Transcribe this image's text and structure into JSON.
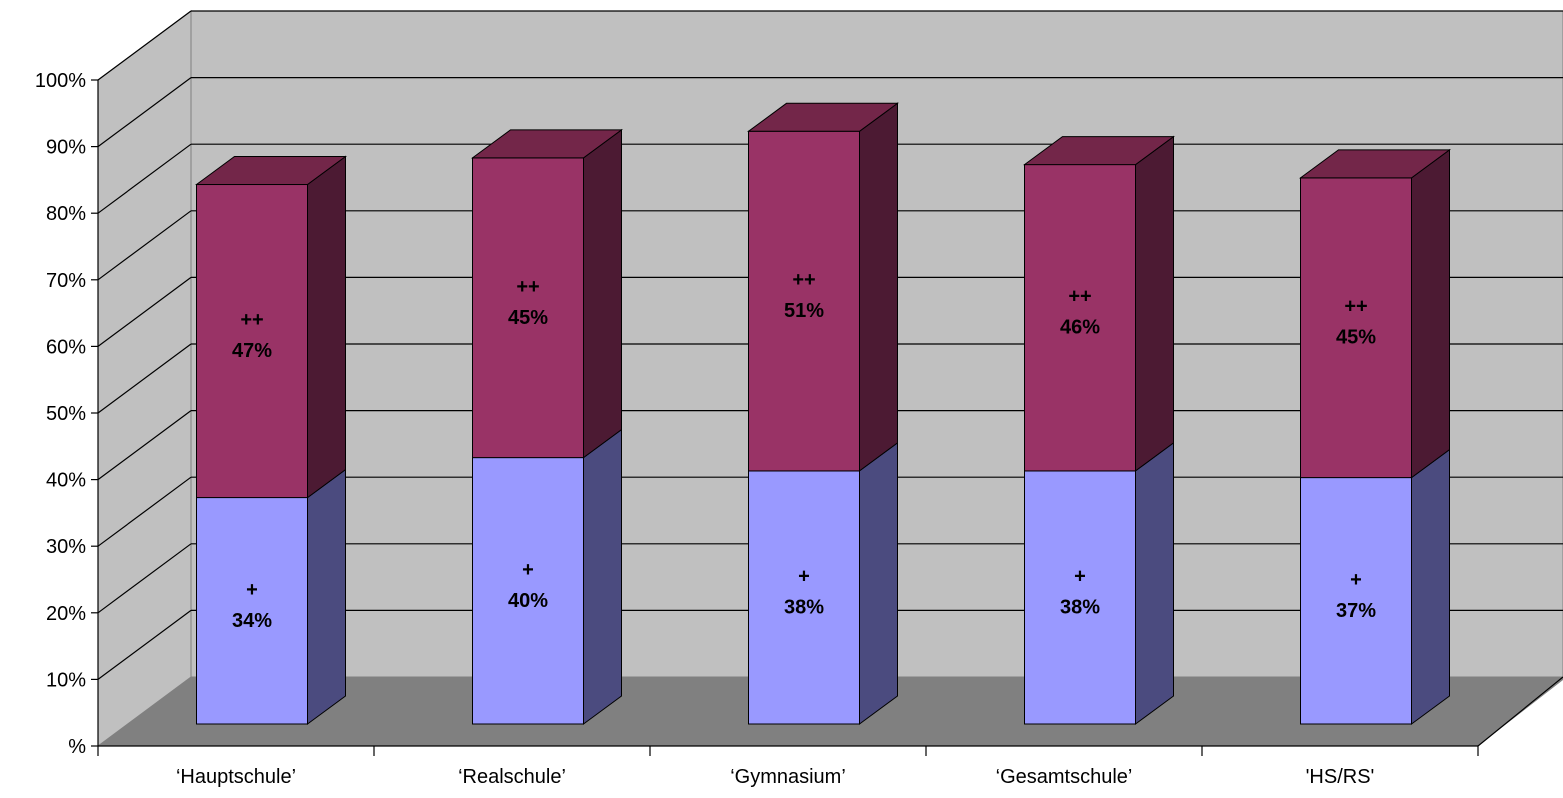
{
  "chart_data": {
    "type": "bar",
    "stacked": true,
    "three_d": true,
    "percent": true,
    "title": "",
    "xlabel": "",
    "ylabel": "",
    "ylim": [
      0,
      100
    ],
    "y_tick_labels": [
      "%",
      "10%",
      "20%",
      "30%",
      "40%",
      "50%",
      "60%",
      "70%",
      "80%",
      "90%",
      "100%"
    ],
    "grid": true,
    "legend": "none",
    "categories": [
      "‘Hauptschule’",
      "‘Realschule’",
      "‘Gymnasium’",
      "‘Gesamtschule’",
      "'HS/RS'"
    ],
    "series": [
      {
        "marker": "+",
        "values": [
          34,
          40,
          38,
          38,
          37
        ],
        "labels": [
          "34%",
          "40%",
          "38%",
          "38%",
          "37%"
        ],
        "color": "#9999ff",
        "side_color": "#4b4b7f",
        "top_color": "#8080d0"
      },
      {
        "marker": "++",
        "values": [
          47,
          45,
          51,
          46,
          45
        ],
        "labels": [
          "47%",
          "45%",
          "51%",
          "46%",
          "45%"
        ],
        "color": "#993366",
        "side_color": "#4c1a33",
        "top_color": "#732649"
      }
    ],
    "colors": {
      "back_wall": "#c0c0c0",
      "side_wall": "#c0c0c0",
      "floor": "#808080",
      "gridline": "#000000"
    }
  }
}
